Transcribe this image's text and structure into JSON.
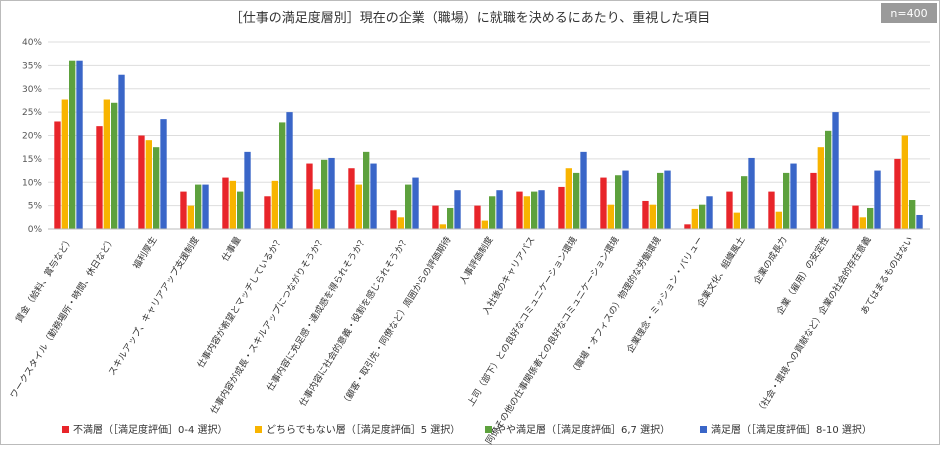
{
  "chart_data": {
    "type": "bar",
    "title": "［仕事の満足度層別］現在の企業（職場）に就職を決めるにあたり、重視した項目",
    "note": "n=400",
    "categories": [
      "賃金（給料、賞与など）",
      "ワークスタイル（勤務場所・時間、休日など）",
      "福利厚生",
      "スキルアップ、キャリアアップ支援制度",
      "仕事量",
      "仕事内容が希望とマッチしているか？",
      "仕事内容が成長・スキルアップにつながりそうか？",
      "仕事内容に充足感・達成感を得られそうか？",
      "仕事内容に社会的意義・役割を感じられそうか？",
      "（顧客・取引先・同僚など）周囲からの評価期待",
      "人事評価制度",
      "入社後のキャリアパス",
      "上司（部下）との良好なコミュニケーション環境",
      "同僚その他の仕事関係者との良好なコミュニケーション環境",
      "（職場・オフィスの）物理的な労働環境",
      "企業理念・ミッション・バリュー",
      "企業文化、組織風土",
      "企業の成長力",
      "企業（雇用）の安定性",
      "（社会・環境への貢献など）企業の社会的存在意義",
      "あてはまるものはない"
    ],
    "series": [
      {
        "name": "不満層（［満足度評価］0-4 選択）",
        "color": "#e8252a",
        "values": [
          23,
          22,
          20,
          8,
          11,
          7,
          14,
          13,
          4,
          5,
          5,
          8,
          9,
          11,
          6,
          1,
          8,
          8,
          12,
          5,
          15
        ]
      },
      {
        "name": "どちらでもない層（［満足度評価］5 選択）",
        "color": "#f8b400",
        "values": [
          27.7,
          27.7,
          19,
          5,
          10.3,
          10.3,
          8.5,
          9.5,
          2.5,
          1,
          1.8,
          7,
          13,
          5.2,
          5.2,
          4.3,
          3.5,
          3.7,
          17.5,
          2.5,
          20
        ]
      },
      {
        "name": "やや満足層（［満足度評価］6,7 選択）",
        "color": "#5da13d",
        "values": [
          36,
          27,
          17.5,
          9.5,
          8,
          22.8,
          14.8,
          16.5,
          9.5,
          4.5,
          7,
          8,
          12,
          11.5,
          12,
          5.2,
          11.3,
          12,
          21,
          4.5,
          6.2
        ]
      },
      {
        "name": "満足層（［満足度評価］8-10 選択）",
        "color": "#3a66c8",
        "values": [
          36,
          33,
          23.5,
          9.5,
          16.5,
          25,
          15.2,
          14,
          11,
          8.3,
          8.3,
          8.3,
          16.5,
          12.5,
          12.5,
          7,
          15.2,
          14,
          25,
          12.5,
          3
        ]
      }
    ],
    "ylim": [
      0,
      40
    ],
    "yticks": [
      {
        "value": 0,
        "label": "0%"
      },
      {
        "value": 5,
        "label": "5%"
      },
      {
        "value": 10,
        "label": "10%"
      },
      {
        "value": 15,
        "label": "15%"
      },
      {
        "value": 20,
        "label": "20%"
      },
      {
        "value": 25,
        "label": "25%"
      },
      {
        "value": 30,
        "label": "30%"
      },
      {
        "value": 35,
        "label": "35%"
      },
      {
        "value": 40,
        "label": "40%"
      }
    ],
    "grid": true
  }
}
